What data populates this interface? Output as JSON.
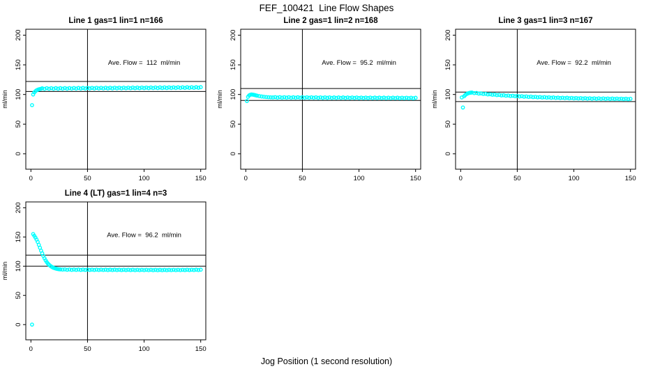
{
  "figure": {
    "title": "FEF_100421  Line Flow Shapes",
    "x_axis_label": "Jog Position (1 second resolution)",
    "y_axis_label": "ml/min",
    "point_color": "#00ffff",
    "axis_color": "#000000",
    "background_color": "#ffffff"
  },
  "chart_data": [
    {
      "type": "scatter",
      "title": "Line 1 gas=1 lin=1 n=166",
      "n": 166,
      "ave_flow": 112,
      "annotation": "Ave. Flow =  112  ml/min",
      "annotation_pos": [
        100,
        150
      ],
      "ylabel": "ml/min",
      "xlim": [
        0,
        150
      ],
      "ylim": [
        0,
        200
      ],
      "x_ticks": [
        0,
        50,
        100,
        150
      ],
      "y_ticks": [
        0,
        50,
        100,
        150,
        200
      ],
      "vline_x": 50,
      "hlines": [
        122,
        105
      ],
      "points": [
        [
          1,
          82
        ],
        [
          2,
          100
        ],
        [
          3,
          103.5
        ],
        [
          4,
          105.5
        ],
        [
          5,
          107
        ],
        [
          6,
          108
        ],
        [
          7,
          108.7
        ],
        [
          8,
          109.2
        ],
        [
          9,
          109.6
        ],
        [
          10,
          110.5
        ],
        [
          12,
          109.5
        ],
        [
          14,
          110.6
        ],
        [
          16,
          109.6
        ],
        [
          18,
          110.6
        ],
        [
          20,
          109.6
        ],
        [
          22,
          110.7
        ],
        [
          24,
          109.7
        ],
        [
          26,
          110.7
        ],
        [
          28,
          109.8
        ],
        [
          30,
          110.8
        ],
        [
          32,
          109.8
        ],
        [
          34,
          110.8
        ],
        [
          36,
          109.9
        ],
        [
          38,
          110.9
        ],
        [
          40,
          109.9
        ],
        [
          42,
          111
        ],
        [
          44,
          110
        ],
        [
          46,
          111
        ],
        [
          48,
          110
        ],
        [
          50,
          111.1
        ],
        [
          52,
          110.1
        ],
        [
          54,
          111.1
        ],
        [
          56,
          110.1
        ],
        [
          58,
          111.2
        ],
        [
          60,
          110.2
        ],
        [
          62,
          111.2
        ],
        [
          64,
          110.2
        ],
        [
          66,
          111.3
        ],
        [
          68,
          110.3
        ],
        [
          70,
          111.3
        ],
        [
          72,
          110.3
        ],
        [
          74,
          111.4
        ],
        [
          76,
          110.4
        ],
        [
          78,
          111.4
        ],
        [
          80,
          110.4
        ],
        [
          82,
          111.5
        ],
        [
          84,
          110.5
        ],
        [
          86,
          111.5
        ],
        [
          88,
          110.5
        ],
        [
          90,
          111.6
        ],
        [
          92,
          110.6
        ],
        [
          94,
          111.6
        ],
        [
          96,
          110.6
        ],
        [
          98,
          111.7
        ],
        [
          100,
          110.7
        ],
        [
          102,
          111.7
        ],
        [
          104,
          110.7
        ],
        [
          106,
          111.8
        ],
        [
          108,
          110.8
        ],
        [
          110,
          111.8
        ],
        [
          112,
          110.8
        ],
        [
          114,
          111.9
        ],
        [
          116,
          110.9
        ],
        [
          118,
          111.9
        ],
        [
          120,
          110.9
        ],
        [
          122,
          112
        ],
        [
          124,
          111
        ],
        [
          126,
          112
        ],
        [
          128,
          111
        ],
        [
          130,
          112.1
        ],
        [
          132,
          111.1
        ],
        [
          134,
          112.1
        ],
        [
          136,
          111.1
        ],
        [
          138,
          112.2
        ],
        [
          140,
          111.2
        ],
        [
          142,
          112.2
        ],
        [
          144,
          111.2
        ],
        [
          146,
          112.3
        ],
        [
          148,
          111.3
        ],
        [
          150,
          112.3
        ]
      ]
    },
    {
      "type": "scatter",
      "title": "Line 2 gas=1 lin=2 n=168",
      "n": 168,
      "ave_flow": 95.2,
      "annotation": "Ave. Flow =  95.2  ml/min",
      "annotation_pos": [
        100,
        150
      ],
      "ylabel": "ml/min",
      "xlim": [
        0,
        150
      ],
      "ylim": [
        0,
        200
      ],
      "x_ticks": [
        0,
        50,
        100,
        150
      ],
      "y_ticks": [
        0,
        50,
        100,
        150,
        200
      ],
      "vline_x": 50,
      "hlines": [
        110,
        90
      ],
      "points": [
        [
          1,
          89
        ],
        [
          2,
          96
        ],
        [
          3,
          98.5
        ],
        [
          4,
          99.5
        ],
        [
          5,
          100
        ],
        [
          6,
          99.8
        ],
        [
          7,
          99.4
        ],
        [
          8,
          99
        ],
        [
          9,
          98.5
        ],
        [
          10,
          98
        ],
        [
          12,
          97.2
        ],
        [
          14,
          96.6
        ],
        [
          16,
          96.1
        ],
        [
          18,
          95.7
        ],
        [
          20,
          95.4
        ],
        [
          22,
          95.2
        ],
        [
          24,
          95
        ],
        [
          26,
          95.5
        ],
        [
          28,
          94.7
        ],
        [
          30,
          95.5
        ],
        [
          32,
          94.6
        ],
        [
          34,
          95.4
        ],
        [
          36,
          94.6
        ],
        [
          38,
          95.4
        ],
        [
          40,
          94.5
        ],
        [
          42,
          95.3
        ],
        [
          44,
          94.5
        ],
        [
          46,
          95.3
        ],
        [
          48,
          94.5
        ],
        [
          50,
          95.3
        ],
        [
          52,
          94.4
        ],
        [
          54,
          95.2
        ],
        [
          56,
          94.4
        ],
        [
          58,
          95.2
        ],
        [
          60,
          94.4
        ],
        [
          62,
          95.2
        ],
        [
          64,
          94.3
        ],
        [
          66,
          95.1
        ],
        [
          68,
          94.3
        ],
        [
          70,
          95.1
        ],
        [
          72,
          94.3
        ],
        [
          74,
          95.1
        ],
        [
          76,
          94.2
        ],
        [
          78,
          95
        ],
        [
          80,
          94.2
        ],
        [
          82,
          95
        ],
        [
          84,
          94.2
        ],
        [
          86,
          95
        ],
        [
          88,
          94.1
        ],
        [
          90,
          94.9
        ],
        [
          92,
          94.1
        ],
        [
          94,
          94.9
        ],
        [
          96,
          94.1
        ],
        [
          98,
          94.9
        ],
        [
          100,
          94
        ],
        [
          102,
          94.8
        ],
        [
          104,
          94
        ],
        [
          106,
          94.8
        ],
        [
          108,
          94
        ],
        [
          110,
          94.8
        ],
        [
          112,
          93.9
        ],
        [
          114,
          94.7
        ],
        [
          116,
          93.9
        ],
        [
          118,
          94.7
        ],
        [
          120,
          93.9
        ],
        [
          122,
          94.7
        ],
        [
          124,
          93.8
        ],
        [
          126,
          94.6
        ],
        [
          128,
          93.8
        ],
        [
          130,
          94.6
        ],
        [
          132,
          93.8
        ],
        [
          134,
          94.6
        ],
        [
          136,
          93.7
        ],
        [
          138,
          94.5
        ],
        [
          140,
          93.7
        ],
        [
          142,
          94.5
        ],
        [
          144,
          93.7
        ],
        [
          146,
          94.5
        ],
        [
          148,
          93.6
        ],
        [
          150,
          94.4
        ]
      ]
    },
    {
      "type": "scatter",
      "title": "Line 3 gas=1 lin=3 n=167",
      "n": 167,
      "ave_flow": 92.2,
      "annotation": "Ave. Flow =  92.2  ml/min",
      "annotation_pos": [
        100,
        150
      ],
      "ylabel": "ml/min",
      "xlim": [
        0,
        150
      ],
      "ylim": [
        0,
        200
      ],
      "x_ticks": [
        0,
        50,
        100,
        150
      ],
      "y_ticks": [
        0,
        50,
        100,
        150,
        200
      ],
      "vline_x": 50,
      "hlines": [
        104,
        88
      ],
      "points": [
        [
          1,
          95
        ],
        [
          2,
          78
        ],
        [
          3,
          97
        ],
        [
          4,
          99
        ],
        [
          5,
          100.5
        ],
        [
          6,
          101.5
        ],
        [
          7,
          102.3
        ],
        [
          8,
          102.8
        ],
        [
          9,
          103.1
        ],
        [
          10,
          103.3
        ],
        [
          12,
          102.3
        ],
        [
          14,
          102.6
        ],
        [
          16,
          101.5
        ],
        [
          18,
          101.8
        ],
        [
          20,
          100.8
        ],
        [
          22,
          101.1
        ],
        [
          24,
          100.1
        ],
        [
          26,
          100.4
        ],
        [
          28,
          99.5
        ],
        [
          30,
          99.9
        ],
        [
          32,
          98.9
        ],
        [
          34,
          99.3
        ],
        [
          36,
          98.4
        ],
        [
          38,
          98.8
        ],
        [
          40,
          97.9
        ],
        [
          42,
          98.3
        ],
        [
          44,
          97.4
        ],
        [
          46,
          97.9
        ],
        [
          48,
          97
        ],
        [
          50,
          97.5
        ],
        [
          52,
          96.6
        ],
        [
          54,
          97.1
        ],
        [
          56,
          96.2
        ],
        [
          58,
          96.7
        ],
        [
          60,
          95.8
        ],
        [
          62,
          96.4
        ],
        [
          64,
          95.5
        ],
        [
          66,
          96
        ],
        [
          68,
          95.2
        ],
        [
          70,
          95.7
        ],
        [
          72,
          94.9
        ],
        [
          74,
          95.5
        ],
        [
          76,
          94.7
        ],
        [
          78,
          95.2
        ],
        [
          80,
          94.4
        ],
        [
          82,
          95
        ],
        [
          84,
          94.2
        ],
        [
          86,
          94.7
        ],
        [
          88,
          94
        ],
        [
          90,
          94.5
        ],
        [
          92,
          93.8
        ],
        [
          94,
          94.4
        ],
        [
          96,
          93.6
        ],
        [
          98,
          94.2
        ],
        [
          100,
          93.4
        ],
        [
          102,
          94
        ],
        [
          104,
          93.3
        ],
        [
          106,
          93.9
        ],
        [
          108,
          93.1
        ],
        [
          110,
          93.7
        ],
        [
          112,
          93
        ],
        [
          114,
          93.6
        ],
        [
          116,
          92.8
        ],
        [
          118,
          93.5
        ],
        [
          120,
          92.7
        ],
        [
          122,
          93.4
        ],
        [
          124,
          92.6
        ],
        [
          126,
          93.3
        ],
        [
          128,
          92.5
        ],
        [
          130,
          93.2
        ],
        [
          132,
          92.4
        ],
        [
          134,
          93.1
        ],
        [
          136,
          92.4
        ],
        [
          138,
          93
        ],
        [
          140,
          92.3
        ],
        [
          142,
          92.9
        ],
        [
          144,
          92.2
        ],
        [
          146,
          92.8
        ],
        [
          148,
          92.1
        ],
        [
          150,
          92.7
        ]
      ]
    },
    {
      "type": "scatter",
      "title": "Line 4 (LT) gas=1 lin=4 n=3",
      "n": 3,
      "ave_flow": 96.2,
      "annotation": "Ave. Flow =  96.2  ml/min",
      "annotation_pos": [
        100,
        150
      ],
      "ylabel": "ml/min",
      "xlim": [
        0,
        150
      ],
      "ylim": [
        0,
        200
      ],
      "x_ticks": [
        0,
        50,
        100,
        150
      ],
      "y_ticks": [
        0,
        50,
        100,
        150,
        200
      ],
      "vline_x": 50,
      "hlines": [
        119,
        100
      ],
      "points": [
        [
          1,
          0
        ],
        [
          2,
          155
        ],
        [
          3,
          152
        ],
        [
          4,
          149
        ],
        [
          5,
          145.5
        ],
        [
          6,
          141.5
        ],
        [
          7,
          136.5
        ],
        [
          8,
          131.5
        ],
        [
          9,
          126.5
        ],
        [
          10,
          122
        ],
        [
          11,
          117.5
        ],
        [
          12,
          113.5
        ],
        [
          13,
          110
        ],
        [
          14,
          107
        ],
        [
          15,
          104.5
        ],
        [
          16,
          102.5
        ],
        [
          17,
          100.8
        ],
        [
          18,
          99.4
        ],
        [
          19,
          98.2
        ],
        [
          20,
          97.2
        ],
        [
          21,
          96.5
        ],
        [
          22,
          95.9
        ],
        [
          23,
          95.4
        ],
        [
          24,
          95
        ],
        [
          25,
          94.7
        ],
        [
          26,
          94.5
        ],
        [
          28,
          94.2
        ],
        [
          30,
          94.5
        ],
        [
          32,
          93.8
        ],
        [
          34,
          94.4
        ],
        [
          36,
          93.7
        ],
        [
          38,
          94.3
        ],
        [
          40,
          93.7
        ],
        [
          42,
          94.3
        ],
        [
          44,
          93.6
        ],
        [
          46,
          94.2
        ],
        [
          48,
          93.6
        ],
        [
          50,
          94.2
        ],
        [
          52,
          93.6
        ],
        [
          54,
          94.1
        ],
        [
          56,
          93.5
        ],
        [
          58,
          94.1
        ],
        [
          60,
          93.5
        ],
        [
          62,
          94.1
        ],
        [
          64,
          93.5
        ],
        [
          66,
          94
        ],
        [
          68,
          93.4
        ],
        [
          70,
          94
        ],
        [
          72,
          93.4
        ],
        [
          74,
          94
        ],
        [
          76,
          93.4
        ],
        [
          78,
          93.9
        ],
        [
          80,
          93.3
        ],
        [
          82,
          93.9
        ],
        [
          84,
          93.3
        ],
        [
          86,
          93.9
        ],
        [
          88,
          93.3
        ],
        [
          90,
          93.9
        ],
        [
          92,
          93.2
        ],
        [
          94,
          93.8
        ],
        [
          96,
          93.2
        ],
        [
          98,
          93.8
        ],
        [
          100,
          93.2
        ],
        [
          102,
          93.8
        ],
        [
          104,
          93.2
        ],
        [
          106,
          93.8
        ],
        [
          108,
          93.1
        ],
        [
          110,
          93.7
        ],
        [
          112,
          93.1
        ],
        [
          114,
          93.7
        ],
        [
          116,
          93.1
        ],
        [
          118,
          93.7
        ],
        [
          120,
          93.1
        ],
        [
          122,
          93.7
        ],
        [
          124,
          93.2
        ],
        [
          126,
          93.8
        ],
        [
          128,
          93.2
        ],
        [
          130,
          93.8
        ],
        [
          132,
          93.2
        ],
        [
          134,
          93.8
        ],
        [
          136,
          93.3
        ],
        [
          138,
          93.9
        ],
        [
          140,
          93.3
        ],
        [
          142,
          93.9
        ],
        [
          144,
          93.4
        ],
        [
          146,
          94
        ],
        [
          148,
          93.4
        ],
        [
          150,
          94
        ]
      ]
    }
  ]
}
